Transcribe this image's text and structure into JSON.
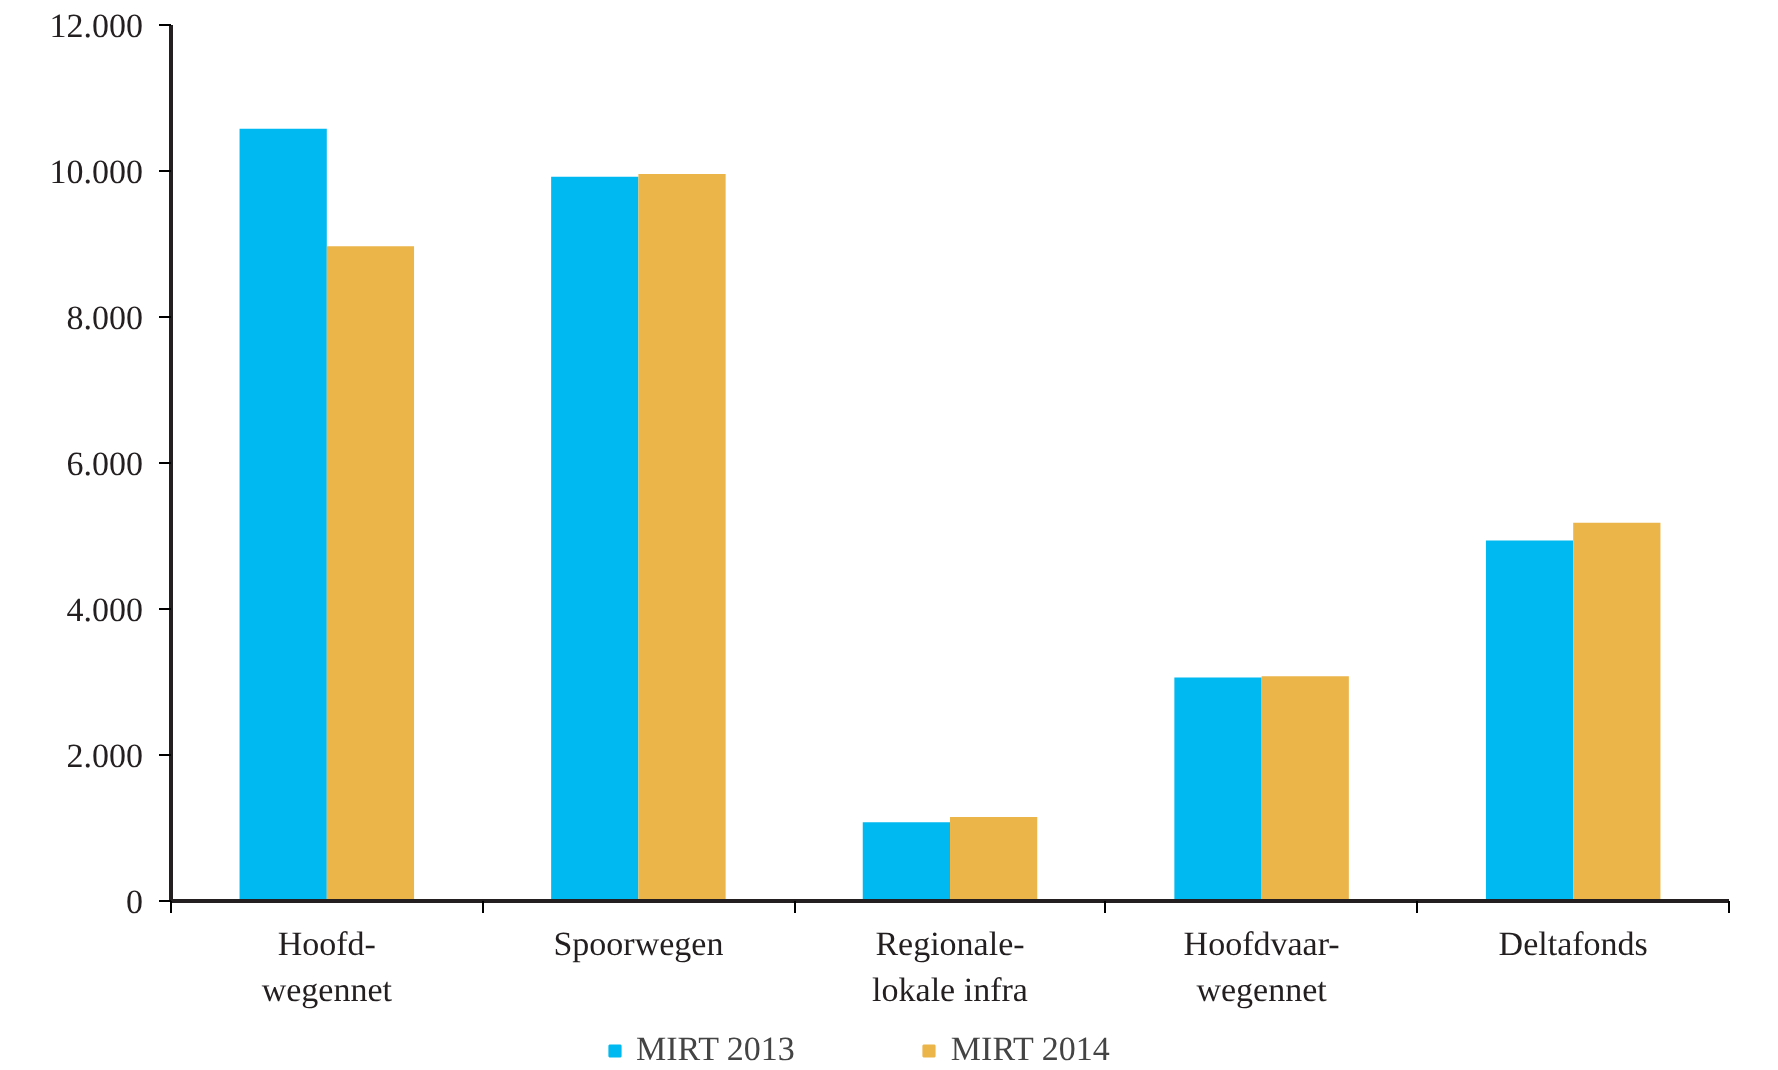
{
  "chart_data": {
    "type": "bar",
    "categories": [
      "Hoofd-\nwegennet",
      "Spoorwegen",
      "Regionale-\nlokale infra",
      "Hoofdvaar-\nwegennet",
      "Deltafonds"
    ],
    "series": [
      {
        "name": "MIRT 2013",
        "color": "#00b9f0",
        "values": [
          10580,
          9920,
          1080,
          3060,
          4940
        ]
      },
      {
        "name": "MIRT 2014",
        "color": "#ebb54a",
        "values": [
          8970,
          9960,
          1150,
          3080,
          5180
        ]
      }
    ],
    "ylim": [
      0,
      12000
    ],
    "yticks": [
      {
        "value": 0,
        "label": "0"
      },
      {
        "value": 2000,
        "label": "2.000"
      },
      {
        "value": 4000,
        "label": "4.000"
      },
      {
        "value": 6000,
        "label": "6.000"
      },
      {
        "value": 8000,
        "label": "8.000"
      },
      {
        "value": 10000,
        "label": "10.000"
      },
      {
        "value": 12000,
        "label": "12.000"
      }
    ],
    "legend": "bottom"
  }
}
